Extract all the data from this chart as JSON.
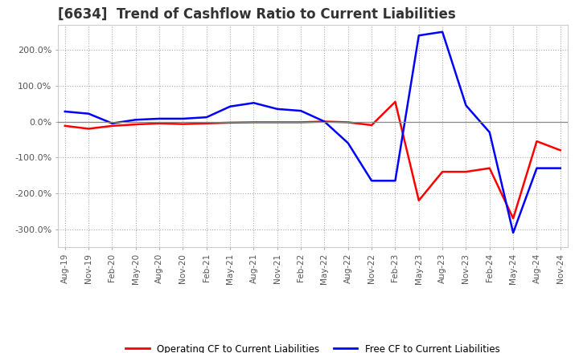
{
  "title": "[6634]  Trend of Cashflow Ratio to Current Liabilities",
  "title_fontsize": 12,
  "x_labels": [
    "Aug-19",
    "Nov-19",
    "Feb-20",
    "May-20",
    "Aug-20",
    "Nov-20",
    "Feb-21",
    "May-21",
    "Aug-21",
    "Nov-21",
    "Feb-22",
    "May-22",
    "Aug-22",
    "Nov-22",
    "Feb-23",
    "May-23",
    "Aug-23",
    "Nov-23",
    "Feb-24",
    "May-24",
    "Aug-24",
    "Nov-24"
  ],
  "ylim": [
    -350,
    270
  ],
  "yticks": [
    -300,
    -200,
    -100,
    0,
    100,
    200
  ],
  "ytick_labels": [
    "-300.0%",
    "-200.0%",
    "-100.0%",
    "0.0%",
    "100.0%",
    "200.0%"
  ],
  "operating_cf": [
    -12,
    -20,
    -12,
    -8,
    -5,
    -7,
    -5,
    -3,
    -2,
    -2,
    -2,
    0,
    -2,
    -10,
    55,
    -220,
    -140,
    -140,
    -130,
    -270,
    -55,
    -80
  ],
  "free_cf": [
    28,
    22,
    -5,
    5,
    8,
    8,
    12,
    42,
    52,
    35,
    30,
    0,
    -60,
    -165,
    -165,
    240,
    250,
    45,
    -30,
    -310,
    -130,
    -130
  ],
  "operating_color": "#ff0000",
  "free_color": "#0000ff",
  "legend_labels": [
    "Operating CF to Current Liabilities",
    "Free CF to Current Liabilities"
  ],
  "grid_color": "#aaaaaa",
  "background_color": "#ffffff"
}
